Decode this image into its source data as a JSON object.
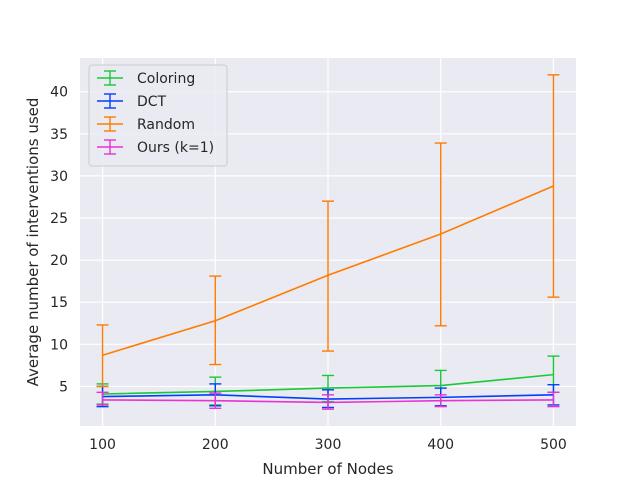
{
  "chart_data": {
    "type": "line",
    "title": "",
    "xlabel": "Number of Nodes",
    "ylabel": "Average number of interventions used",
    "x": [
      100,
      200,
      300,
      400,
      500
    ],
    "x_ticks": [
      "100",
      "200",
      "300",
      "400",
      "500"
    ],
    "y_ticks": [
      "5",
      "10",
      "15",
      "20",
      "25",
      "30",
      "35",
      "40"
    ],
    "xlim": [
      80,
      520
    ],
    "ylim": [
      0.3,
      44
    ],
    "grid": true,
    "error_bars": true,
    "legend_position": "top-left",
    "series": [
      {
        "name": "Coloring",
        "color": "#1ac938",
        "values": [
          4.1,
          4.4,
          4.8,
          5.1,
          6.4
        ],
        "lower": [
          2.9,
          2.8,
          3.2,
          3.3,
          4.3
        ],
        "upper": [
          5.3,
          6.1,
          6.3,
          6.9,
          8.6
        ]
      },
      {
        "name": "DCT",
        "color": "#023eff",
        "values": [
          3.8,
          4.0,
          3.5,
          3.7,
          4.0
        ],
        "lower": [
          2.6,
          2.7,
          2.5,
          2.7,
          2.8
        ],
        "upper": [
          5.0,
          5.3,
          4.6,
          4.8,
          5.2
        ]
      },
      {
        "name": "Random",
        "color": "#ff7c00",
        "values": [
          8.7,
          12.8,
          18.2,
          23.1,
          28.8
        ],
        "lower": [
          5.0,
          7.6,
          9.2,
          12.2,
          15.6
        ],
        "upper": [
          12.3,
          18.1,
          27.0,
          33.9,
          42.0
        ]
      },
      {
        "name": "Ours (k=1)",
        "color": "#e8000b",
        "display_color": "#e933d4",
        "values": [
          3.4,
          3.3,
          3.1,
          3.3,
          3.4
        ],
        "lower": [
          2.8,
          2.4,
          2.3,
          2.6,
          2.6
        ],
        "upper": [
          4.3,
          4.2,
          4.0,
          4.0,
          4.3
        ]
      }
    ]
  }
}
